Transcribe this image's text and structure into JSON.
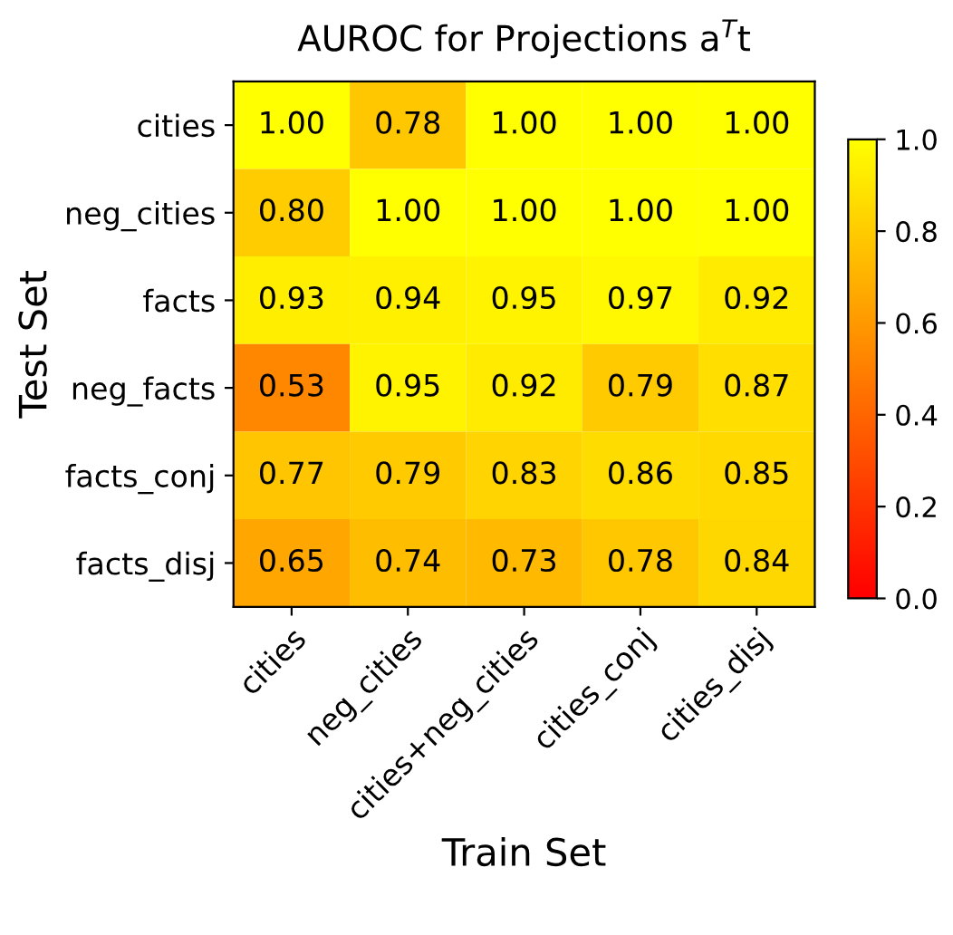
{
  "chart_data": {
    "type": "heatmap",
    "title": "AUROC for Projections a$^{T}$t",
    "xlabel": "Train Set",
    "ylabel": "Test Set",
    "categories": [
      "cities",
      "neg_cities",
      "cities+neg_cities",
      "cities_conj",
      "cities_disj"
    ],
    "y_categories": [
      "cities",
      "neg_cities",
      "facts",
      "neg_facts",
      "facts_conj",
      "facts_disj"
    ],
    "cells": [
      [
        1.0,
        0.78,
        1.0,
        1.0,
        1.0
      ],
      [
        0.8,
        1.0,
        1.0,
        1.0,
        1.0
      ],
      [
        0.93,
        0.94,
        0.95,
        0.97,
        0.92
      ],
      [
        0.53,
        0.95,
        0.92,
        0.79,
        0.87
      ],
      [
        0.77,
        0.79,
        0.83,
        0.86,
        0.85
      ],
      [
        0.65,
        0.74,
        0.73,
        0.78,
        0.84
      ]
    ],
    "cell_labels": [
      [
        "1.00",
        "0.78",
        "1.00",
        "1.00",
        "1.00"
      ],
      [
        "0.80",
        "1.00",
        "1.00",
        "1.00",
        "1.00"
      ],
      [
        "0.93",
        "0.94",
        "0.95",
        "0.97",
        "0.92"
      ],
      [
        "0.53",
        "0.95",
        "0.92",
        "0.79",
        "0.87"
      ],
      [
        "0.77",
        "0.79",
        "0.83",
        "0.86",
        "0.85"
      ],
      [
        "0.65",
        "0.74",
        "0.73",
        "0.78",
        "0.84"
      ]
    ],
    "clim": [
      0,
      1
    ],
    "cticks": [
      {
        "value": 0,
        "label": "0.0"
      },
      {
        "value": 0.2,
        "label": "0.2"
      },
      {
        "value": 0.4,
        "label": "0.4"
      },
      {
        "value": 0.6,
        "label": "0.6"
      },
      {
        "value": 0.8,
        "label": "0.8"
      },
      {
        "value": 1,
        "label": "1.0"
      }
    ]
  }
}
